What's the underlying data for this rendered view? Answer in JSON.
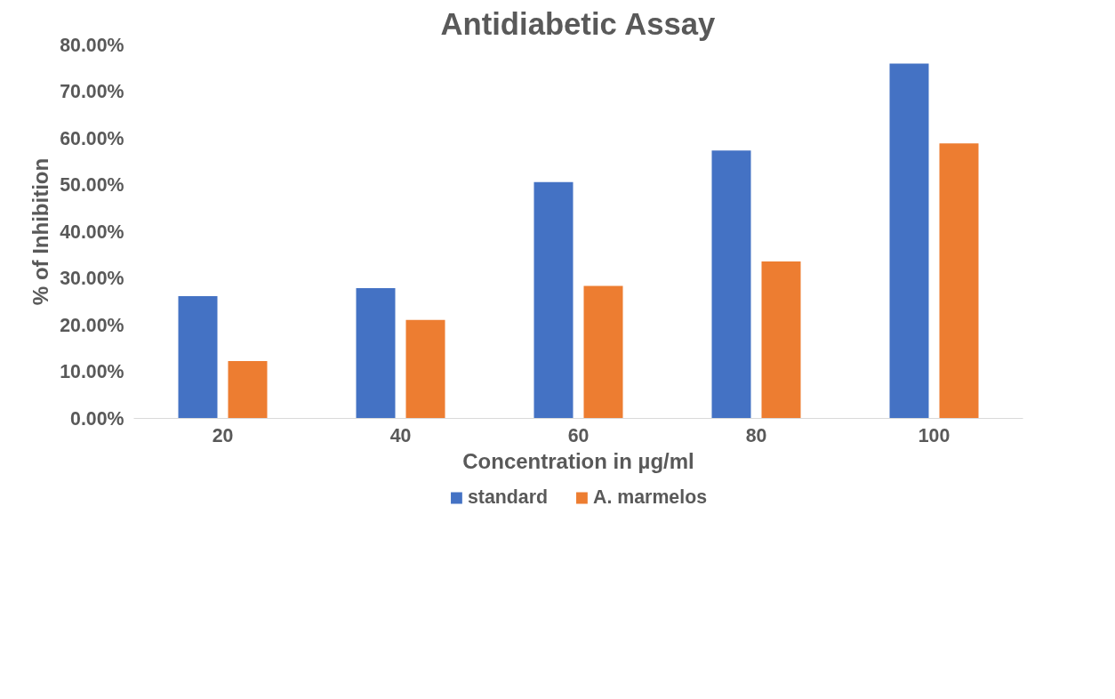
{
  "chart_data": {
    "type": "bar",
    "title": "Antidiabetic Assay",
    "xlabel": "Concentration in µg/ml",
    "ylabel": "% of Inhibition",
    "categories": [
      "20",
      "40",
      "60",
      "80",
      "100"
    ],
    "series": [
      {
        "name": "standard",
        "color": "#4472c4",
        "values": [
          26.2,
          27.9,
          50.6,
          57.4,
          76.0
        ]
      },
      {
        "name": "A. marmelos",
        "color": "#ed7d31",
        "values": [
          12.3,
          21.1,
          28.4,
          33.6,
          58.9
        ]
      }
    ],
    "ylim": [
      0,
      80
    ],
    "yticks": [
      {
        "value": 0,
        "label": "0.00%"
      },
      {
        "value": 10,
        "label": "10.00%"
      },
      {
        "value": 20,
        "label": "20.00%"
      },
      {
        "value": 30,
        "label": "30.00%"
      },
      {
        "value": 40,
        "label": "40.00%"
      },
      {
        "value": 50,
        "label": "50.00%"
      },
      {
        "value": 60,
        "label": "60.00%"
      },
      {
        "value": 70,
        "label": "70.00%"
      },
      {
        "value": 80,
        "label": "80.00%"
      }
    ],
    "grid": false,
    "legend": "bottom"
  }
}
